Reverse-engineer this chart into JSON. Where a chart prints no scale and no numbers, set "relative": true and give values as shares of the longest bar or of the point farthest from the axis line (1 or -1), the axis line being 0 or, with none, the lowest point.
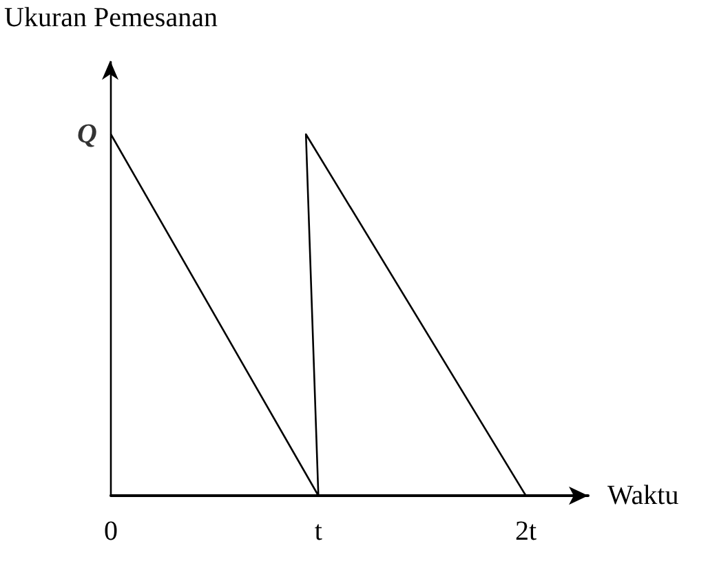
{
  "chart_data": {
    "type": "line",
    "xlabel": "Waktu",
    "ylabel": "Ukuran Pemesanan",
    "relative": true,
    "x": [
      0,
      1,
      0.94,
      2
    ],
    "series": [
      {
        "color": "#000000",
        "values": [
          1,
          0,
          1,
          0
        ]
      }
    ],
    "xlim": [
      0,
      2.3
    ],
    "xticks": [
      0,
      {
        "value": 1,
        "label": "t"
      },
      {
        "value": 2,
        "label": "2t"
      }
    ],
    "marker": "none",
    "line_style": "solid",
    "grid": false,
    "annotations": [
      {
        "text": "Q",
        "x": 0,
        "y": 1
      }
    ]
  }
}
